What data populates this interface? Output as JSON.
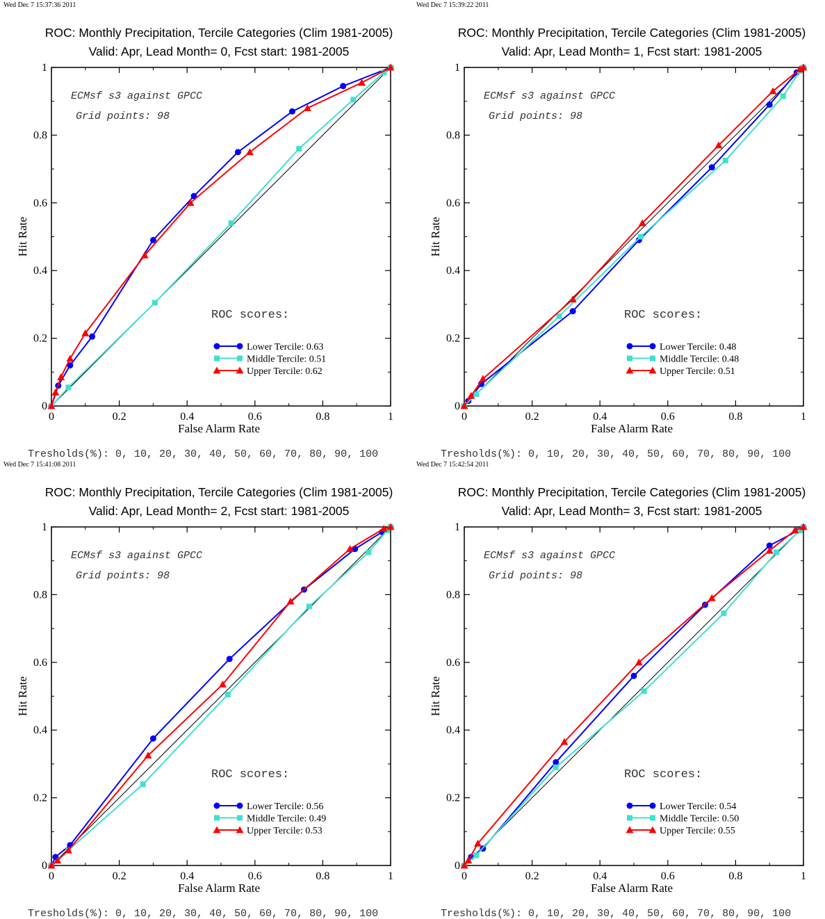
{
  "chart_data": [
    {
      "type": "line",
      "timestamp": "Wed Dec  7 15:37:36 2011",
      "title": "ROC: Monthly Precipitation, Tercile Categories (Clim 1981-2005)",
      "subtitle": "Valid: Apr, Lead Month= 0, Fcst start: 1981-2005",
      "xlabel": "False Alarm Rate",
      "ylabel": "Hit Rate",
      "xlim": [
        0,
        1
      ],
      "ylim": [
        0,
        1
      ],
      "xticks": [
        "0",
        "0.2",
        "0.4",
        "0.6",
        "0.8",
        "1"
      ],
      "yticks": [
        "0",
        "0.2",
        "0.4",
        "0.6",
        "0.8",
        "1"
      ],
      "annotation_line1": "ECMsf s3 against GPCC",
      "annotation_line2": "Grid points:   98",
      "scores_heading": "ROC scores:",
      "thresholds": "Tresholds(%): 0, 10, 20, 30, 40, 50, 60, 70, 80, 90, 100",
      "legend_position": "lower-right",
      "series": [
        {
          "name": "Lower Tercile: 0.63",
          "color": "#0000ff",
          "marker": "circle",
          "x": [
            0,
            0.02,
            0.055,
            0.12,
            0.3,
            0.42,
            0.55,
            0.71,
            0.86,
            1
          ],
          "y": [
            0,
            0.06,
            0.12,
            0.205,
            0.49,
            0.62,
            0.75,
            0.87,
            0.945,
            1
          ]
        },
        {
          "name": "Middle Tercile: 0.51",
          "color": "#40e0d0",
          "marker": "square",
          "x": [
            0,
            0.05,
            0.305,
            0.53,
            0.73,
            0.89,
            0.98,
            1
          ],
          "y": [
            0,
            0.055,
            0.305,
            0.54,
            0.76,
            0.905,
            0.985,
            1
          ]
        },
        {
          "name": "Upper Tercile: 0.62",
          "color": "#ff0000",
          "marker": "triangle",
          "x": [
            0,
            0.012,
            0.028,
            0.055,
            0.1,
            0.275,
            0.41,
            0.585,
            0.755,
            0.915,
            1
          ],
          "y": [
            0,
            0.04,
            0.085,
            0.14,
            0.215,
            0.445,
            0.6,
            0.75,
            0.88,
            0.955,
            1
          ]
        }
      ]
    },
    {
      "type": "line",
      "timestamp": "Wed Dec  7 15:39:22 2011",
      "title": "ROC: Monthly Precipitation, Tercile Categories (Clim 1981-2005)",
      "subtitle": "Valid: Apr, Lead Month= 1, Fcst start: 1981-2005",
      "xlabel": "False Alarm Rate",
      "ylabel": "Hit Rate",
      "xlim": [
        0,
        1
      ],
      "ylim": [
        0,
        1
      ],
      "xticks": [
        "0",
        "0.2",
        "0.4",
        "0.6",
        "0.8",
        "1"
      ],
      "yticks": [
        "0",
        "0.2",
        "0.4",
        "0.6",
        "0.8",
        "1"
      ],
      "annotation_line1": "ECMsf s3 against GPCC",
      "annotation_line2": "Grid points:   98",
      "scores_heading": "ROC scores:",
      "thresholds": "Tresholds(%): 0, 10, 20, 30, 40, 50, 60, 70, 80, 90, 100",
      "legend_position": "lower-right",
      "series": [
        {
          "name": "Lower Tercile: 0.48",
          "color": "#0000ff",
          "marker": "circle",
          "x": [
            0,
            0.012,
            0.05,
            0.32,
            0.515,
            0.73,
            0.9,
            0.98,
            1
          ],
          "y": [
            0,
            0.015,
            0.065,
            0.28,
            0.49,
            0.705,
            0.89,
            0.985,
            1
          ]
        },
        {
          "name": "Middle Tercile: 0.48",
          "color": "#40e0d0",
          "marker": "square",
          "x": [
            0,
            0.035,
            0.28,
            0.52,
            0.77,
            0.94,
            0.99,
            1
          ],
          "y": [
            0,
            0.035,
            0.265,
            0.5,
            0.725,
            0.915,
            0.99,
            1
          ]
        },
        {
          "name": "Upper Tercile: 0.51",
          "color": "#ff0000",
          "marker": "triangle",
          "x": [
            0,
            0.02,
            0.055,
            0.32,
            0.525,
            0.75,
            0.91,
            0.99,
            1
          ],
          "y": [
            0,
            0.03,
            0.08,
            0.315,
            0.54,
            0.77,
            0.93,
            0.995,
            1
          ]
        }
      ]
    },
    {
      "type": "line",
      "timestamp": "Wed Dec  7 15:41:08 2011",
      "title": "ROC: Monthly Precipitation, Tercile Categories (Clim 1981-2005)",
      "subtitle": "Valid: Apr, Lead Month= 2, Fcst start: 1981-2005",
      "xlabel": "False Alarm Rate",
      "ylabel": "Hit Rate",
      "xlim": [
        0,
        1
      ],
      "ylim": [
        0,
        1
      ],
      "xticks": [
        "0",
        "0.2",
        "0.4",
        "0.6",
        "0.8",
        "1"
      ],
      "yticks": [
        "0",
        "0.2",
        "0.4",
        "0.6",
        "0.8",
        "1"
      ],
      "annotation_line1": "ECMsf s3 against GPCC",
      "annotation_line2": "Grid points:   98",
      "scores_heading": "ROC scores:",
      "thresholds": "Tresholds(%): 0, 10, 20, 30, 40, 50, 60, 70, 80, 90, 100",
      "legend_position": "lower-right",
      "series": [
        {
          "name": "Lower Tercile: 0.56",
          "color": "#0000ff",
          "marker": "circle",
          "x": [
            0,
            0.012,
            0.055,
            0.3,
            0.525,
            0.745,
            0.895,
            0.975,
            1
          ],
          "y": [
            0,
            0.025,
            0.06,
            0.375,
            0.61,
            0.815,
            0.935,
            0.985,
            1
          ]
        },
        {
          "name": "Middle Tercile: 0.49",
          "color": "#40e0d0",
          "marker": "square",
          "x": [
            0,
            0.05,
            0.27,
            0.52,
            0.76,
            0.935,
            0.99,
            1
          ],
          "y": [
            0,
            0.045,
            0.24,
            0.505,
            0.765,
            0.925,
            0.99,
            1
          ]
        },
        {
          "name": "Upper Tercile: 0.53",
          "color": "#ff0000",
          "marker": "triangle",
          "x": [
            0,
            0.018,
            0.05,
            0.285,
            0.505,
            0.705,
            0.88,
            0.98,
            1
          ],
          "y": [
            0,
            0.015,
            0.045,
            0.325,
            0.535,
            0.78,
            0.935,
            0.995,
            1
          ]
        }
      ]
    },
    {
      "type": "line",
      "timestamp": "Wed Dec  7 15:42:54 2011",
      "title": "ROC: Monthly Precipitation, Tercile Categories (Clim 1981-2005)",
      "subtitle": "Valid: Apr, Lead Month= 3, Fcst start: 1981-2005",
      "xlabel": "False Alarm Rate",
      "ylabel": "Hit Rate",
      "xlim": [
        0,
        1
      ],
      "ylim": [
        0,
        1
      ],
      "xticks": [
        "0",
        "0.2",
        "0.4",
        "0.6",
        "0.8",
        "1"
      ],
      "yticks": [
        "0",
        "0.2",
        "0.4",
        "0.6",
        "0.8",
        "1"
      ],
      "annotation_line1": "ECMsf s3 against GPCC",
      "annotation_line2": "Grid points:   98",
      "scores_heading": "ROC scores:",
      "thresholds": "Tresholds(%): 0, 10, 20, 30, 40, 50, 60, 70, 80, 90, 100",
      "legend_position": "lower-right",
      "series": [
        {
          "name": "Lower Tercile: 0.54",
          "color": "#0000ff",
          "marker": "circle",
          "x": [
            0,
            0.02,
            0.055,
            0.27,
            0.5,
            0.71,
            0.9,
            0.985,
            1
          ],
          "y": [
            0,
            0.025,
            0.05,
            0.305,
            0.56,
            0.77,
            0.945,
            0.99,
            1
          ]
        },
        {
          "name": "Middle Tercile: 0.50",
          "color": "#40e0d0",
          "marker": "square",
          "x": [
            0,
            0.035,
            0.27,
            0.53,
            0.765,
            0.92,
            0.99,
            1
          ],
          "y": [
            0,
            0.03,
            0.29,
            0.515,
            0.745,
            0.925,
            0.99,
            1
          ]
        },
        {
          "name": "Upper Tercile: 0.55",
          "color": "#ff0000",
          "marker": "triangle",
          "x": [
            0,
            0.012,
            0.04,
            0.295,
            0.515,
            0.73,
            0.9,
            0.975,
            1
          ],
          "y": [
            0,
            0.015,
            0.065,
            0.365,
            0.6,
            0.79,
            0.93,
            0.99,
            1
          ]
        }
      ]
    }
  ]
}
